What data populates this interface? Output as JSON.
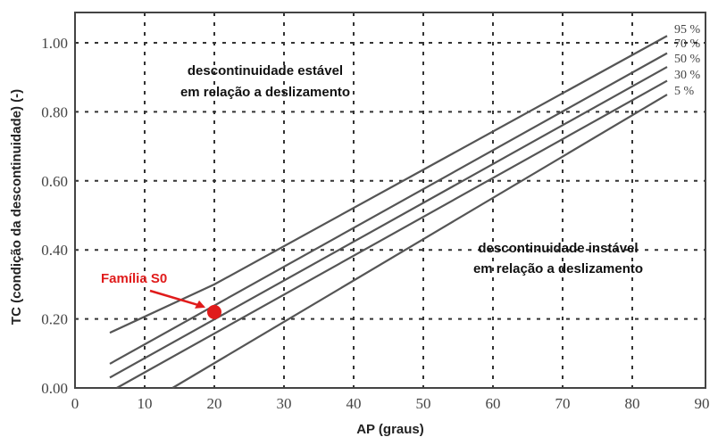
{
  "chart_data": {
    "type": "line",
    "xlabel": "AP (graus)",
    "ylabel": "TC (condição da descontinuidade) (-)",
    "xlim": [
      0,
      90
    ],
    "ylim": [
      0,
      1.1
    ],
    "x_ticks": [
      "0",
      "10",
      "20",
      "30",
      "40",
      "50",
      "60",
      "70",
      "80",
      "90"
    ],
    "y_ticks": [
      "0.00",
      "0.20",
      "0.40",
      "0.60",
      "0.80",
      "1.00"
    ],
    "grid": true,
    "series": [
      {
        "name": "95 %",
        "x": [
          5,
          20,
          85
        ],
        "y": [
          0.16,
          0.3,
          1.02
        ]
      },
      {
        "name": "70 %",
        "x": [
          5,
          85
        ],
        "y": [
          0.07,
          0.97
        ]
      },
      {
        "name": "50 %",
        "x": [
          5,
          85
        ],
        "y": [
          0.03,
          0.93
        ]
      },
      {
        "name": "30 %",
        "x": [
          6,
          85
        ],
        "y": [
          0.0,
          0.89
        ]
      },
      {
        "name": "5 %",
        "x": [
          14,
          85
        ],
        "y": [
          0.0,
          0.85
        ]
      }
    ],
    "annotations": {
      "stable": [
        "descontinuidade estável",
        "em relação a deslizamento"
      ],
      "unstable": [
        "descontinuidade instável",
        "em relação a deslizamento"
      ]
    },
    "marker": {
      "label": "Família S0",
      "x": 20,
      "y": 0.22,
      "color": "#e01b1b"
    },
    "colors": {
      "curve": "#555555",
      "grid": "#333333",
      "axis": "#444444"
    }
  }
}
